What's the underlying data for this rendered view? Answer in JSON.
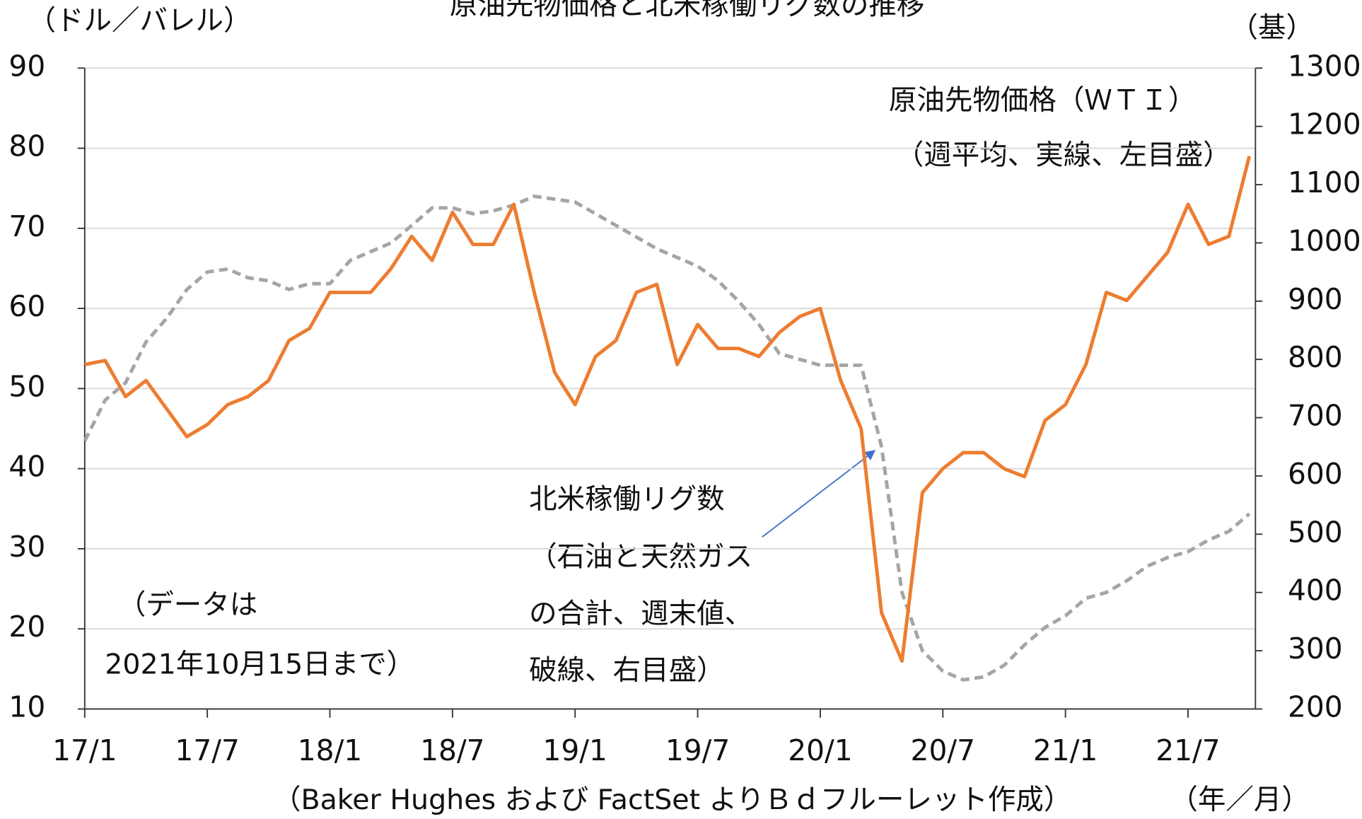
{
  "chart_data": {
    "type": "line",
    "title": "原油先物価格と北米稼働リグ数の推移",
    "y_label": "（ドル／バレル）",
    "y2_label": "（基）",
    "x_label": "（年／月）",
    "source": "（Baker Hughes および FactSet よりＢｄフルーレット作成）",
    "annotations": [
      "（週平均、実線、左目盛）",
      "（石油と天然ガス",
      "の合計、週末値、",
      "破線、右目盛）",
      "（データは",
      "2021年10月15日まで）"
    ],
    "x": [
      "2017-01",
      "2017-02",
      "2017-03",
      "2017-04",
      "2017-05",
      "2017-06",
      "2017-07",
      "2017-08",
      "2017-09",
      "2017-10",
      "2017-11",
      "2017-12",
      "2018-01",
      "2018-02",
      "2018-03",
      "2018-04",
      "2018-05",
      "2018-06",
      "2018-07",
      "2018-08",
      "2018-09",
      "2018-10",
      "2018-11",
      "2018-12",
      "2019-01",
      "2019-02",
      "2019-03",
      "2019-04",
      "2019-05",
      "2019-06",
      "2019-07",
      "2019-08",
      "2019-09",
      "2019-10",
      "2019-11",
      "2019-12",
      "2020-01",
      "2020-02",
      "2020-03",
      "2020-04",
      "2020-05",
      "2020-06",
      "2020-07",
      "2020-08",
      "2020-09",
      "2020-10",
      "2020-11",
      "2020-12",
      "2021-01",
      "2021-02",
      "2021-03",
      "2021-04",
      "2021-05",
      "2021-06",
      "2021-07",
      "2021-08",
      "2021-09",
      "2021-10"
    ],
    "xlim": [
      "2017-01",
      "2021-10"
    ],
    "xticks": [
      {
        "value": "2017-01",
        "label": "17/1"
      },
      {
        "value": "2017-07",
        "label": "17/7"
      },
      {
        "value": "2018-01",
        "label": "18/1"
      },
      {
        "value": "2018-07",
        "label": "18/7"
      },
      {
        "value": "2019-01",
        "label": "19/1"
      },
      {
        "value": "2019-07",
        "label": "19/7"
      },
      {
        "value": "2020-01",
        "label": "20/1"
      },
      {
        "value": "2020-07",
        "label": "20/7"
      },
      {
        "value": "2021-01",
        "label": "21/1"
      },
      {
        "value": "2021-07",
        "label": "21/7"
      }
    ],
    "ylim": [
      10,
      90
    ],
    "yticks": [
      10,
      20,
      30,
      40,
      50,
      60,
      70,
      80,
      90
    ],
    "y2lim": [
      200,
      1300
    ],
    "y2ticks": [
      200,
      300,
      400,
      500,
      600,
      700,
      800,
      900,
      1000,
      1100,
      1200,
      1300
    ],
    "grid": true,
    "series": [
      {
        "name": "原油先物価格（ＷＴＩ）",
        "color": "#ed7d31",
        "style": "solid",
        "values": [
          53,
          53.5,
          49,
          51,
          47.5,
          44,
          45.5,
          48,
          49,
          51,
          56,
          57.5,
          62,
          62,
          62,
          65,
          69,
          66,
          72,
          68,
          68,
          73,
          62,
          52,
          48,
          54,
          56,
          62,
          63,
          53,
          58,
          55,
          55,
          54,
          57,
          59,
          60,
          51,
          45,
          22,
          16,
          37,
          40,
          42,
          42,
          40,
          39,
          46,
          48,
          53,
          62,
          61,
          64,
          67,
          73,
          68,
          69,
          79
        ]
      },
      {
        "name": "北米稼働リグ数",
        "color": "#a5a5a5",
        "style": "dashed",
        "axis": "y2",
        "values": [
          660,
          730,
          760,
          830,
          870,
          920,
          950,
          955,
          940,
          935,
          920,
          930,
          930,
          970,
          985,
          1000,
          1030,
          1060,
          1060,
          1050,
          1055,
          1065,
          1080,
          1075,
          1070,
          1050,
          1030,
          1010,
          990,
          975,
          960,
          935,
          900,
          860,
          810,
          800,
          790,
          790,
          790,
          650,
          400,
          300,
          265,
          250,
          255,
          275,
          310,
          340,
          360,
          390,
          400,
          420,
          445,
          460,
          470,
          490,
          505,
          535
        ]
      }
    ]
  }
}
